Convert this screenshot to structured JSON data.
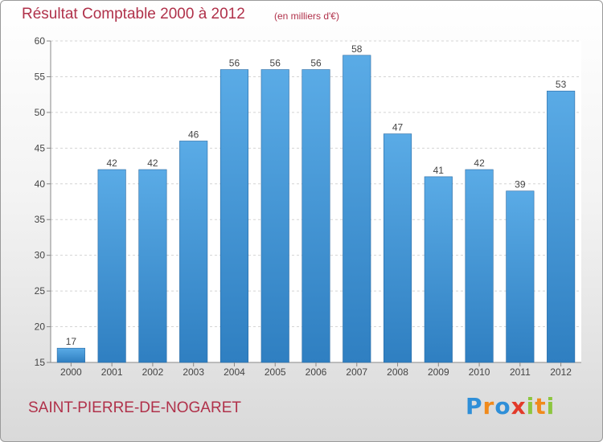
{
  "chart_data": {
    "type": "bar",
    "title": "Résultat Comptable 2000 à 2012",
    "subtitle": "(en milliers d'€)",
    "categories": [
      "2000",
      "2001",
      "2002",
      "2003",
      "2004",
      "2005",
      "2006",
      "2007",
      "2008",
      "2009",
      "2010",
      "2011",
      "2012"
    ],
    "values": [
      17,
      42,
      42,
      46,
      56,
      56,
      56,
      58,
      47,
      41,
      42,
      39,
      53
    ],
    "ylim": [
      15,
      60
    ],
    "yticks": [
      15,
      20,
      25,
      30,
      35,
      40,
      45,
      50,
      55,
      60
    ],
    "xlabel": "",
    "ylabel": "",
    "grid": true,
    "bar_color_top": "#5aabe6",
    "bar_color_bottom": "#2f7fc1"
  },
  "commune": "SAINT-PIERRE-DE-NOGARET",
  "brand": {
    "name": "Proxiti",
    "letters": [
      {
        "char": "P",
        "color": "#2f8fd8"
      },
      {
        "char": "r",
        "color": "#f08a1c"
      },
      {
        "char": "o",
        "color": "#2f8fd8"
      },
      {
        "char": "x",
        "color": "#e23a2a"
      },
      {
        "char": "i",
        "color": "#8dc63f"
      },
      {
        "char": "t",
        "color": "#f08a1c"
      },
      {
        "char": "i",
        "color": "#8dc63f"
      }
    ]
  }
}
